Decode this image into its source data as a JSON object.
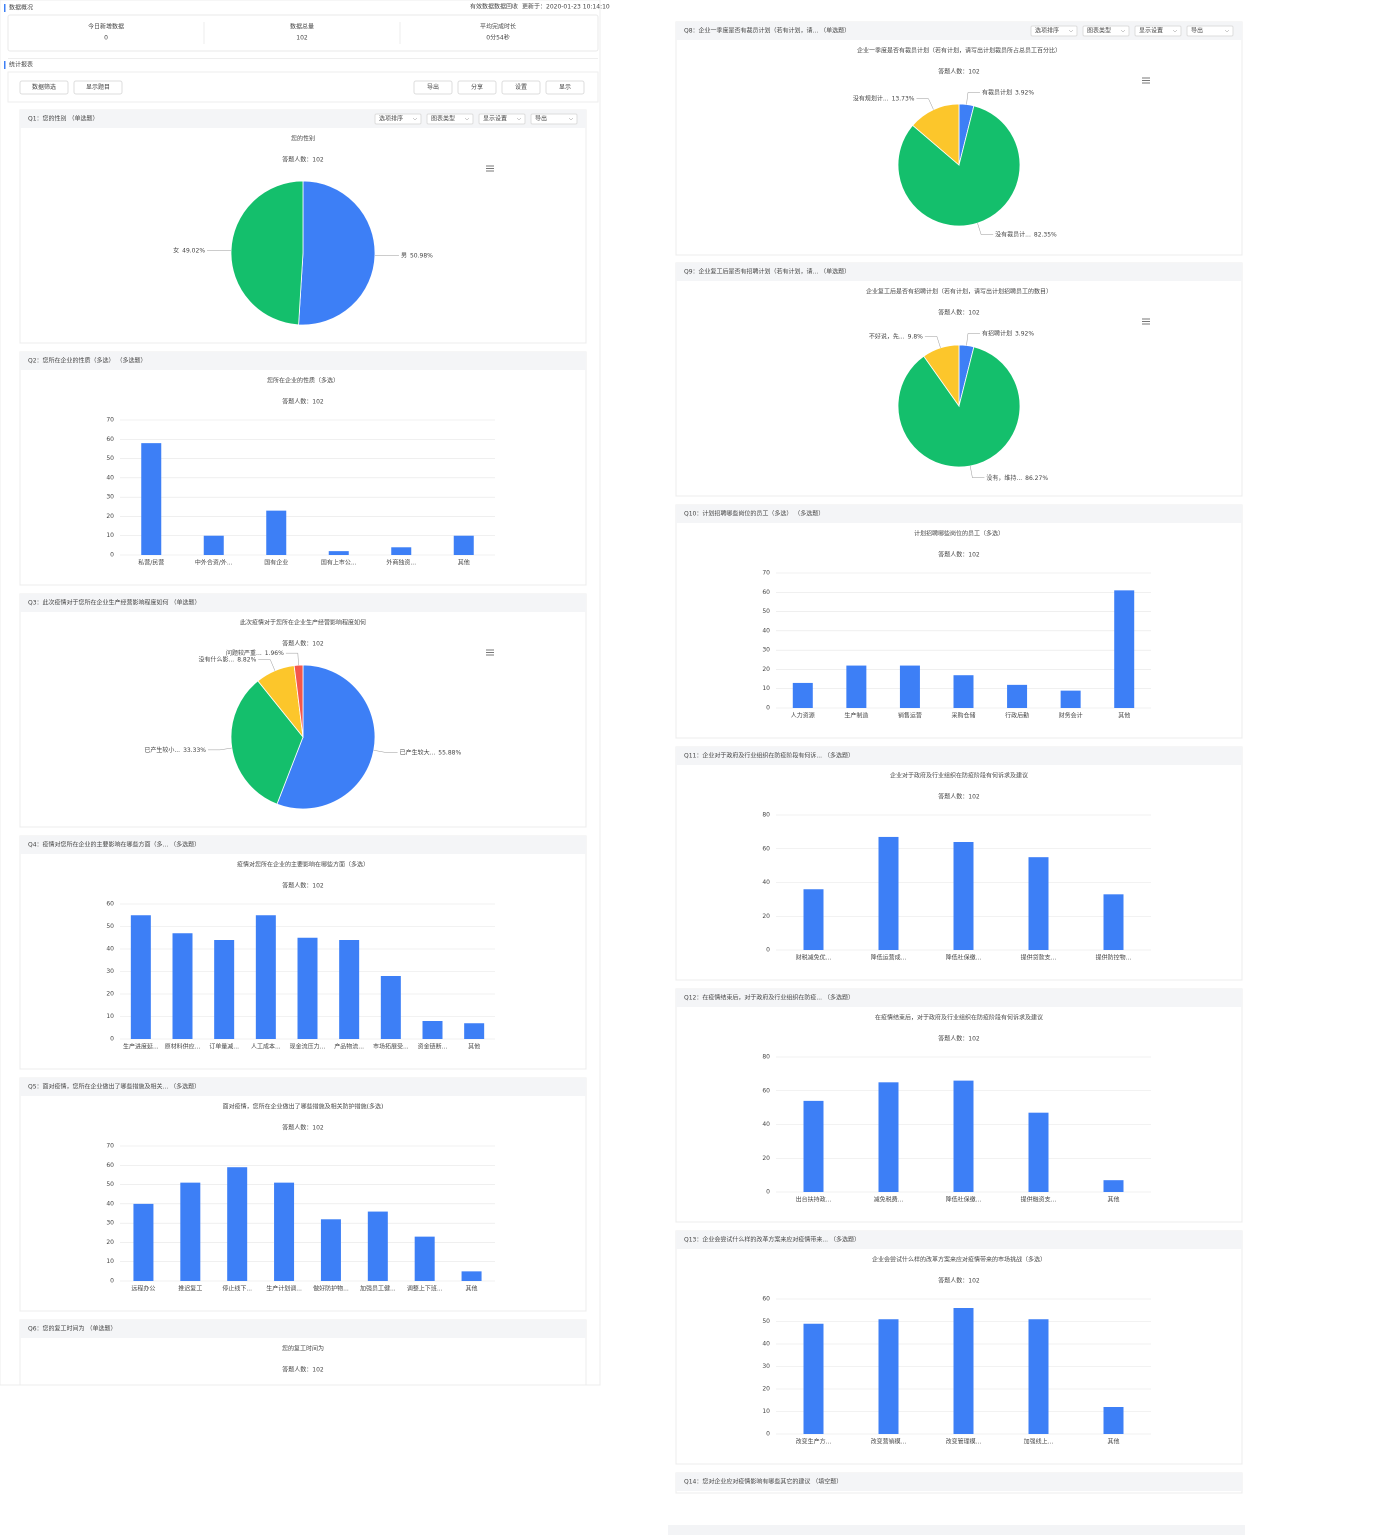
{
  "header": {
    "title": "数据概况",
    "link": "有效数据数据回收",
    "updated": "更新于：2020-01-23 10:14:10"
  },
  "stats": [
    {
      "label": "今日新增数据",
      "value": 0
    },
    {
      "label": "数据总量",
      "value": 102
    },
    {
      "label": "平均完成时长",
      "value": "0分54秒"
    }
  ],
  "report": {
    "title": "统计报表",
    "toolbar_left": [
      "数据筛选",
      "显示题目"
    ],
    "toolbar_right": [
      "导出",
      "分享",
      "设置",
      "显示"
    ]
  },
  "chart_data": [
    {
      "question": "Q1：您的性别 （单选题）",
      "controls": [
        "选项排序",
        "图表类型",
        "显示设置",
        "导出"
      ],
      "type": "pie",
      "title": "您的性别",
      "subtitle": "答题人数：102",
      "categories": [
        "男",
        "女"
      ],
      "values": [
        50.98,
        49.02
      ],
      "value_labels": [
        "50.98%",
        "49.02%"
      ],
      "colors": [
        "#3d7ff6",
        "#14bf6c"
      ]
    },
    {
      "question": "Q2：您所在企业的性质（多选） （多选题）",
      "type": "bar",
      "title": "您所在企业的性质（多选）",
      "subtitle": "答题人数：102",
      "categories": [
        "私营/民营",
        "中外合资/外...",
        "国有企业",
        "国有上市公...",
        "外商独资...",
        "其他"
      ],
      "values": [
        58,
        10,
        23,
        2,
        4,
        10
      ],
      "color": "#3d7ff6",
      "ylim": [
        0,
        70
      ],
      "yticks": [
        0,
        10,
        20,
        30,
        40,
        50,
        60,
        70
      ]
    },
    {
      "question": "Q3：此次疫情对于您所在企业生产经营影响程度如何 （单选题）",
      "type": "pie",
      "title": "此次疫情对于您所在企业生产经营影响程度如何",
      "subtitle": "答题人数：102",
      "categories": [
        "已产生较大...",
        "已产生较小...",
        "没有什么影...",
        "问题较严重..."
      ],
      "values": [
        55.88,
        33.33,
        8.82,
        1.96
      ],
      "value_labels": [
        "55.88%",
        "33.33%",
        "8.82%",
        "1.96%"
      ],
      "colors": [
        "#3d7ff6",
        "#14bf6c",
        "#fcc62b",
        "#f4574b"
      ]
    },
    {
      "question": "Q4：疫情对您所在企业的主要影响在哪些方面（多... （多选题）",
      "type": "bar",
      "title": "疫情对您所在企业的主要影响在哪些方面（多选）",
      "subtitle": "答题人数：102",
      "categories": [
        "生产进度延...",
        "原材料供应...",
        "订单量减...",
        "人工成本...",
        "现金流压力...",
        "产品物流...",
        "市场拓展受...",
        "资金链断...",
        "其他"
      ],
      "values": [
        55,
        47,
        44,
        55,
        45,
        44,
        28,
        8,
        7
      ],
      "color": "#3d7ff6",
      "ylim": [
        0,
        60
      ],
      "yticks": [
        0,
        10,
        20,
        30,
        40,
        50,
        60
      ]
    },
    {
      "question": "Q5：面对疫情，您所在企业做出了哪些措施及相关... （多选题）",
      "type": "bar",
      "title": "面对疫情，您所在企业做出了哪些措施及相关防护措施(多选)",
      "subtitle": "答题人数：102",
      "categories": [
        "远程办公",
        "推迟复工",
        "停止线下...",
        "生产计划调...",
        "做好防护物...",
        "加强员工健...",
        "调整上下班...",
        "其他"
      ],
      "values": [
        40,
        51,
        59,
        51,
        32,
        36,
        23,
        5
      ],
      "color": "#3d7ff6",
      "ylim": [
        0,
        70
      ],
      "yticks": [
        0,
        10,
        20,
        30,
        40,
        50,
        60,
        70
      ]
    },
    {
      "question": "Q6：您的复工时间为 （单选题）",
      "title": "您的复工时间为",
      "subtitle": "答题人数：102"
    },
    {
      "question": "Q8：企业一季度是否有裁员计划（若有计划，请... （单选题）",
      "controls": [
        "选项排序",
        "图表类型",
        "显示设置",
        "导出"
      ],
      "type": "pie",
      "title": "企业一季度是否有裁员计划（若有计划，请写出计划裁员所占总员工百分比）",
      "subtitle": "答题人数：102",
      "categories": [
        "有裁员计划",
        "没有裁员计...",
        "没有规划计..."
      ],
      "values": [
        3.92,
        82.35,
        13.73
      ],
      "value_labels": [
        "3.92%",
        "82.35%",
        "13.73%"
      ],
      "colors": [
        "#3d7ff6",
        "#14bf6c",
        "#fcc62b"
      ]
    },
    {
      "question": "Q9：企业复工后是否有招聘计划（若有计划，请... （单选题）",
      "type": "pie",
      "title": "企业复工后是否有招聘计划（若有计划，请写出计划招聘员工的数目）",
      "subtitle": "答题人数：102",
      "categories": [
        "有招聘计划",
        "没有，维持...",
        "不好说，先..."
      ],
      "values": [
        3.92,
        86.27,
        9.8
      ],
      "value_labels": [
        "3.92%",
        "86.27%",
        "9.8%"
      ],
      "colors": [
        "#3d7ff6",
        "#14bf6c",
        "#fcc62b"
      ]
    },
    {
      "question": "Q10：计划招聘哪些岗位的员工（多选） （多选题）",
      "type": "bar",
      "title": "计划招聘哪些岗位的员工（多选）",
      "subtitle": "答题人数：102",
      "categories": [
        "人力资源",
        "生产制造",
        "销售运营",
        "采购仓储",
        "行政后勤",
        "财务会计",
        "其他"
      ],
      "values": [
        13,
        22,
        22,
        17,
        12,
        9,
        61
      ],
      "color": "#3d7ff6",
      "ylim": [
        0,
        70
      ],
      "yticks": [
        0,
        10,
        20,
        30,
        40,
        50,
        60,
        70
      ]
    },
    {
      "question": "Q11：企业对于政府及行业组织在防疫阶段有何诉... （多选题）",
      "type": "bar",
      "title": "企业对于政府及行业组织在防疫阶段有何诉求及建议",
      "subtitle": "答题人数：102",
      "categories": [
        "财税减免优...",
        "降低运营成...",
        "降低社保缴...",
        "提供贷款支...",
        "提供防控物..."
      ],
      "values": [
        36,
        67,
        64,
        55,
        33
      ],
      "color": "#3d7ff6",
      "ylim": [
        0,
        80
      ],
      "yticks": [
        0,
        20,
        40,
        60,
        80
      ]
    },
    {
      "question": "Q12：在疫情结束后，对于政府及行业组织在防疫... （多选题）",
      "type": "bar",
      "title": "在疫情结束后，对于政府及行业组织在防疫阶段有何诉求及建议",
      "subtitle": "答题人数：102",
      "categories": [
        "出台扶持政...",
        "减免税费...",
        "降低社保缴...",
        "提供融资支...",
        "其他"
      ],
      "values": [
        54,
        65,
        66,
        47,
        7
      ],
      "color": "#3d7ff6",
      "ylim": [
        0,
        80
      ],
      "yticks": [
        0,
        20,
        40,
        60,
        80
      ]
    },
    {
      "question": "Q13：企业会尝试什么样的改革方案来应对疫情带来... （多选题）",
      "type": "bar",
      "title": "企业会尝试什么样的改革方案来应对疫情带来的市场挑战（多选）",
      "subtitle": "答题人数：102",
      "categories": [
        "改变生产方...",
        "改变营销模...",
        "改变管理模...",
        "加强线上...",
        "其他"
      ],
      "values": [
        49,
        51,
        56,
        51,
        12
      ],
      "color": "#3d7ff6",
      "ylim": [
        0,
        60
      ],
      "yticks": [
        0,
        10,
        20,
        30,
        40,
        50,
        60
      ]
    },
    {
      "question": "Q14：您对企业应对疫情影响有哪些其它的建议 （填空题）"
    }
  ]
}
